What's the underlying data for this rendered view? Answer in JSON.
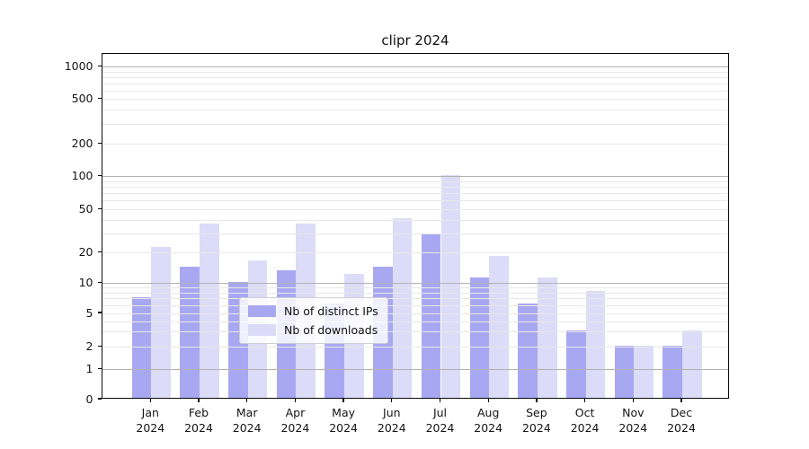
{
  "chart_data": {
    "type": "bar",
    "title": "clipr 2024",
    "categories": [
      "Jan",
      "Feb",
      "Mar",
      "Apr",
      "May",
      "Jun",
      "Jul",
      "Aug",
      "Sep",
      "Oct",
      "Nov",
      "Dec"
    ],
    "x_year_label": "2024",
    "series": [
      {
        "name": "Nb of distinct IPs",
        "color": "#a8a8f2",
        "values": [
          7,
          14,
          10,
          13,
          6,
          14,
          29,
          11,
          6,
          3,
          2,
          2
        ]
      },
      {
        "name": "Nb of downloads",
        "color": "#dcdcf8",
        "values": [
          22,
          36,
          16,
          36,
          12,
          40,
          100,
          18,
          11,
          8,
          2,
          3
        ]
      }
    ],
    "xlabel": "",
    "ylabel": "",
    "yscale": "asinh-log",
    "ylim": [
      0,
      1315
    ],
    "yticks": [
      0,
      1,
      2,
      5,
      10,
      20,
      50,
      100,
      200,
      500,
      1000
    ],
    "ytick_labels": [
      "0",
      "1",
      "2",
      "5",
      "10",
      "20",
      "50",
      "100",
      "200",
      "500",
      "1000"
    ],
    "major_gridline_values": [
      1,
      10,
      100,
      1000
    ],
    "minor_gridline_values": [
      2,
      5,
      20,
      50,
      200,
      500,
      3,
      4,
      6,
      7,
      8,
      9,
      30,
      40,
      60,
      70,
      80,
      90,
      300,
      400,
      600,
      700,
      800,
      900
    ],
    "grid": true,
    "legend_position": "lower-center-inside",
    "colors": {
      "distinct_ips": "#a8a8f2",
      "downloads": "#dcdcf8",
      "major_grid": "#b2b2b2",
      "minor_grid": "#e8e8e8",
      "spine": "#0a0a0a",
      "background": "#ffffff"
    }
  },
  "legend": {
    "items": [
      {
        "label": "Nb of distinct IPs"
      },
      {
        "label": "Nb of downloads"
      }
    ]
  }
}
